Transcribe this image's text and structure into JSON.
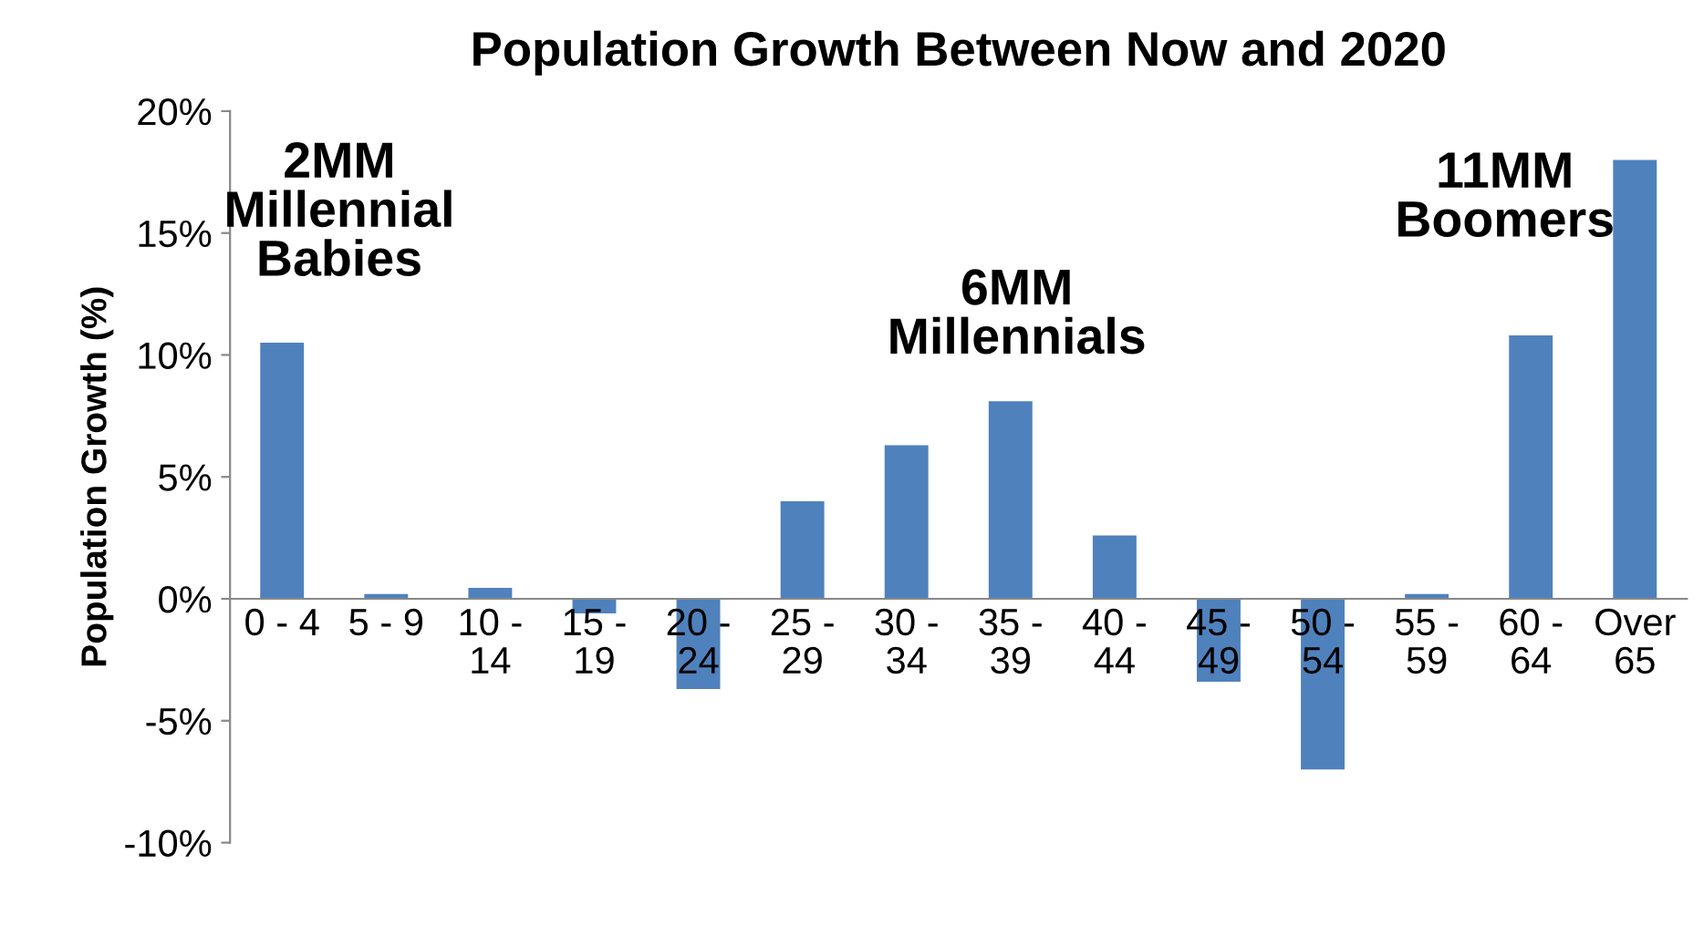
{
  "chart_data": {
    "type": "bar",
    "title": "Population Growth Between Now and 2020",
    "ylabel": "Population Growth (%)",
    "categories": [
      "0 - 4",
      "5 - 9",
      "10 -\n14",
      "15 -\n19",
      "20 -\n24",
      "25 -\n29",
      "30 -\n34",
      "35 -\n39",
      "40 -\n44",
      "45 -\n49",
      "50 -\n54",
      "55 -\n59",
      "60 -\n64",
      "Over\n65"
    ],
    "values": [
      10.5,
      0.2,
      0.45,
      -0.6,
      -3.7,
      4.0,
      6.3,
      8.1,
      2.6,
      -3.4,
      -7.0,
      0.2,
      10.8,
      18.0
    ],
    "color": "#4f81bd",
    "ylim": [
      -10,
      20
    ],
    "yticks": [
      {
        "value": -10,
        "label": "-10%"
      },
      {
        "value": -5,
        "label": "-5%"
      },
      {
        "value": 0,
        "label": "0%"
      },
      {
        "value": 5,
        "label": "5%"
      },
      {
        "value": 10,
        "label": "10%"
      },
      {
        "value": 15,
        "label": "15%"
      },
      {
        "value": 20,
        "label": "20%"
      }
    ],
    "annotations": [
      "2MM\nMillennial\nBabies",
      "6MM\nMillennials",
      "11MM\nBoomers"
    ],
    "grid": false
  }
}
